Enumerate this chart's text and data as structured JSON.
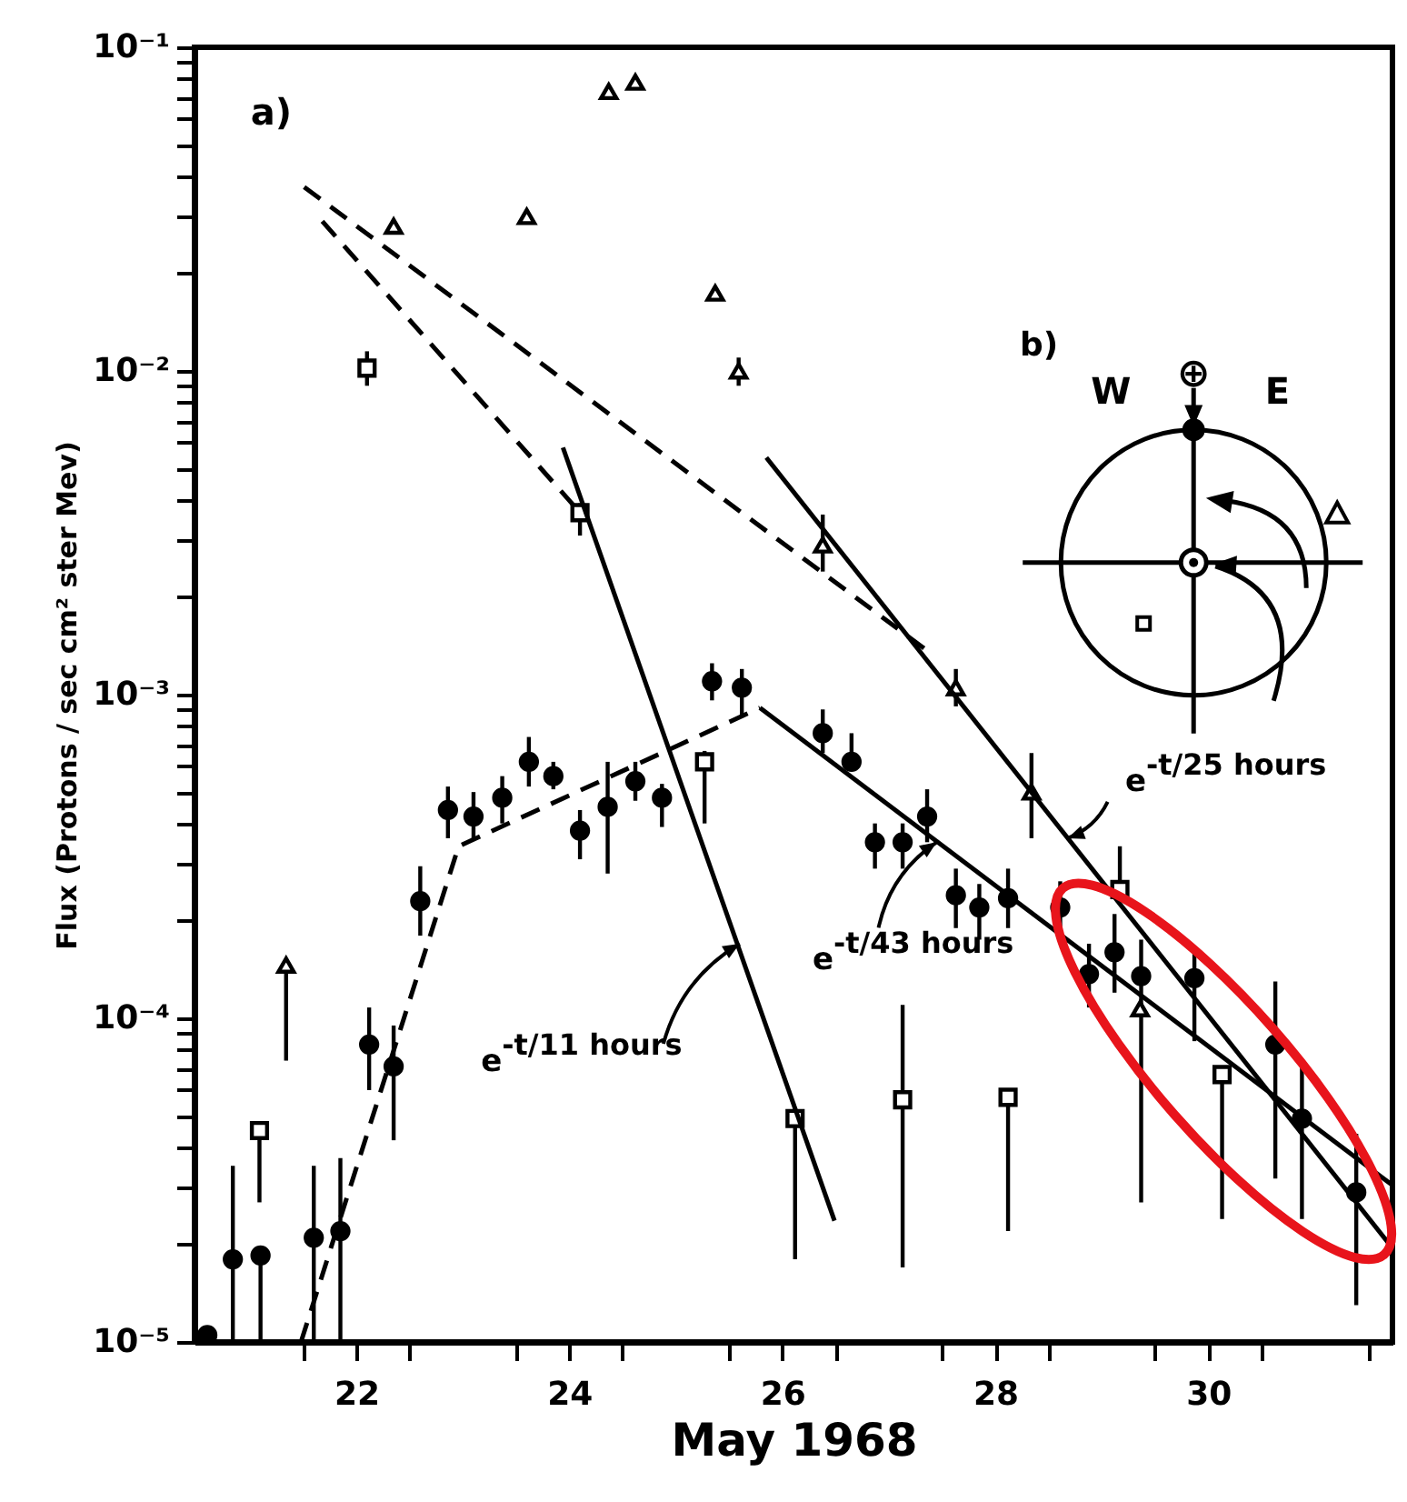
{
  "chart_data": {
    "type": "scatter",
    "xlabel": "May 1968",
    "ylabel": "Flux (Protons / sec cm² ster Mev)",
    "log": "y",
    "xlim": [
      20.48,
      31.73
    ],
    "ylim": [
      1e-05,
      0.1
    ],
    "xticks": [
      {
        "value": 21.5,
        "label": null
      },
      22,
      {
        "value": 22.5,
        "label": null
      },
      {
        "value": 23.5,
        "label": null
      },
      24,
      {
        "value": 24.5,
        "label": null
      },
      {
        "value": 25.5,
        "label": null
      },
      26,
      {
        "value": 26.5,
        "label": null
      },
      {
        "value": 27.5,
        "label": null
      },
      28,
      {
        "value": 28.5,
        "label": null
      },
      {
        "value": 29.5,
        "label": null
      },
      30,
      {
        "value": 30.5,
        "label": null
      },
      {
        "value": 31.5,
        "label": null
      }
    ],
    "yticks": [
      {
        "value": 1e-05,
        "label": "10⁻⁵"
      },
      {
        "value": 2e-05,
        "label": null
      },
      {
        "value": 3e-05,
        "label": null
      },
      {
        "value": 4e-05,
        "label": null
      },
      {
        "value": 5e-05,
        "label": null
      },
      {
        "value": 6e-05,
        "label": null
      },
      {
        "value": 7e-05,
        "label": null
      },
      {
        "value": 8e-05,
        "label": null
      },
      {
        "value": 9e-05,
        "label": null
      },
      {
        "value": 0.0001,
        "label": "10⁻⁴"
      },
      {
        "value": 0.0002,
        "label": null
      },
      {
        "value": 0.0003,
        "label": null
      },
      {
        "value": 0.0004,
        "label": null
      },
      {
        "value": 0.0005,
        "label": null
      },
      {
        "value": 0.0006,
        "label": null
      },
      {
        "value": 0.0007,
        "label": null
      },
      {
        "value": 0.0008,
        "label": null
      },
      {
        "value": 0.0009,
        "label": null
      },
      {
        "value": 0.001,
        "label": "10⁻³"
      },
      {
        "value": 0.002,
        "label": null
      },
      {
        "value": 0.003,
        "label": null
      },
      {
        "value": 0.004,
        "label": null
      },
      {
        "value": 0.005,
        "label": null
      },
      {
        "value": 0.006,
        "label": null
      },
      {
        "value": 0.007,
        "label": null
      },
      {
        "value": 0.008,
        "label": null
      },
      {
        "value": 0.009,
        "label": null
      },
      {
        "value": 0.01,
        "label": "10⁻²"
      },
      {
        "value": 0.02,
        "label": null
      },
      {
        "value": 0.03,
        "label": null
      },
      {
        "value": 0.04,
        "label": null
      },
      {
        "value": 0.05,
        "label": null
      },
      {
        "value": 0.06,
        "label": null
      },
      {
        "value": 0.07,
        "label": null
      },
      {
        "value": 0.08,
        "label": null
      },
      {
        "value": 0.09,
        "label": null
      },
      {
        "value": 0.1,
        "label": "10⁻¹"
      }
    ],
    "annotations": [
      "a)",
      "b)",
      "W",
      "E",
      "⊕",
      {
        "text": "e$^{-t/11 hours}$",
        "x": 25.6,
        "y": 0.00017
      },
      {
        "text": "e$^{-t/43 hours}$",
        "x": 27.45,
        "y": 0.00035
      },
      {
        "text": "e$^{-t/25 hours}$",
        "x": 28.68,
        "y": 0.00036
      }
    ],
    "series": [
      {
        "marker": "circle",
        "color": "#000000",
        "x": [
          20.6,
          20.84,
          21.1,
          21.6,
          21.85,
          22.12,
          22.35,
          22.6,
          22.86,
          23.1,
          23.37,
          23.62,
          23.85,
          24.1,
          24.36,
          24.62,
          24.87,
          25.34,
          25.62,
          26.38,
          26.65,
          26.87,
          27.13,
          27.36,
          27.63,
          27.85,
          28.12,
          28.61,
          28.88,
          29.12,
          29.37,
          29.87,
          30.63,
          30.88,
          31.39
        ],
        "values": [
          1.05e-05,
          1.8e-05,
          1.85e-05,
          2.1e-05,
          2.2e-05,
          8.3e-05,
          7.1e-05,
          0.00023,
          0.00044,
          0.00042,
          0.00048,
          0.00062,
          0.00056,
          0.00038,
          0.00045,
          0.00054,
          0.00048,
          0.0011,
          0.00105,
          0.00076,
          0.00062,
          0.00035,
          0.00035,
          0.00042,
          0.00024,
          0.00022,
          0.000235,
          0.00022,
          0.000137,
          0.00016,
          0.000135,
          0.000133,
          8.3e-05,
          4.9e-05,
          2.9e-05
        ],
        "errors": [
          null,
          [
            1e-05,
            3.5e-05
          ],
          [
            1e-05,
            1.85e-05
          ],
          [
            1e-05,
            3.5e-05
          ],
          [
            1e-05,
            3.7e-05
          ],
          [
            6e-05,
            0.000108
          ],
          [
            4.2e-05,
            9.5e-05
          ],
          [
            0.00018,
            0.000295
          ],
          [
            0.00036,
            0.00052
          ],
          [
            0.00036,
            0.0005
          ],
          [
            0.0004,
            0.00056
          ],
          [
            0.00052,
            0.00074
          ],
          [
            0.00051,
            0.00062
          ],
          [
            0.00031,
            0.00044
          ],
          [
            0.00028,
            0.00062
          ],
          [
            0.00047,
            0.00062
          ],
          [
            0.00039,
            0.00053
          ],
          [
            0.00096,
            0.00125
          ],
          [
            0.00085,
            0.0012
          ],
          [
            0.00066,
            0.0009
          ],
          [
            0.00058,
            0.00076
          ],
          [
            0.00029,
            0.0004
          ],
          [
            0.00029,
            0.0004
          ],
          [
            0.00035,
            0.00051
          ],
          [
            0.00019,
            0.00029
          ],
          [
            0.000175,
            0.00026
          ],
          [
            0.00019,
            0.00029
          ],
          [
            0.00018,
            0.000265
          ],
          [
            0.000108,
            0.00017
          ],
          [
            0.00012,
            0.00021
          ],
          [
            2.7e-05,
            0.000175
          ],
          [
            8.5e-05,
            0.00016
          ],
          [
            3.2e-05,
            0.00013
          ],
          [
            2.4e-05,
            7.2e-05
          ],
          [
            1.3e-05,
            4.4e-05
          ]
        ]
      },
      {
        "marker": "square",
        "color": "#000000",
        "x": [
          21.09,
          22.1,
          24.1,
          25.27,
          26.12,
          27.13,
          28.12,
          29.17,
          30.13
        ],
        "values": [
          4.5e-05,
          0.0102,
          0.00365,
          0.00062,
          4.9e-05,
          5.6e-05,
          5.7e-05,
          0.00025,
          6.7e-05
        ],
        "errors": [
          [
            2.7e-05,
            4.5e-05
          ],
          [
            0.009,
            0.0115
          ],
          [
            0.0031,
            0.0039
          ],
          [
            0.0004,
            0.00067
          ],
          [
            1.8e-05,
            4.9e-05
          ],
          [
            1.7e-05,
            0.00011
          ],
          [
            2.2e-05,
            5.7e-05
          ],
          [
            0.00025,
            0.00034
          ],
          [
            2.4e-05,
            6.7e-05
          ]
        ]
      },
      {
        "marker": "triangle",
        "color": "#000000",
        "x": [
          21.34,
          22.35,
          23.6,
          24.37,
          24.62,
          25.37,
          25.59,
          26.38,
          27.63,
          28.34,
          29.36
        ],
        "values": [
          0.000146,
          0.028,
          0.03,
          0.073,
          0.078,
          0.0174,
          0.01,
          0.0029,
          0.00105,
          0.0005,
          0.000107
        ],
        "errors": [
          [
            7.4e-05,
            0.000146
          ],
          null,
          null,
          null,
          null,
          null,
          [
            0.009,
            0.011
          ],
          [
            0.0024,
            0.0036
          ],
          [
            0.00092,
            0.0012
          ],
          [
            0.00036,
            0.00066
          ],
          null
        ]
      },
      {
        "type": "line",
        "line_style": "dashed",
        "color": "#000000",
        "x": [
          21.48,
          22.96,
          25.79
        ],
        "values": [
          1e-05,
          0.00034,
          0.00091
        ]
      },
      {
        "type": "line",
        "line_style": "solid",
        "color": "#000000",
        "x": [
          25.79,
          31.73
        ],
        "values": [
          0.00091,
          3.05e-05
        ]
      },
      {
        "type": "line",
        "line_style": "solid",
        "color": "#000000",
        "x": [
          25.85,
          31.73
        ],
        "values": [
          0.0054,
          1.95e-05
        ]
      },
      {
        "type": "line",
        "line_style": "solid",
        "color": "#000000",
        "x": [
          23.94,
          26.49
        ],
        "values": [
          0.0058,
          2.37e-05
        ]
      },
      {
        "type": "line",
        "line_style": "dashed",
        "color": "#000000",
        "x": [
          21.51,
          27.41
        ],
        "values": [
          0.037,
          0.00133
        ]
      },
      {
        "type": "line",
        "line_style": "dashed",
        "color": "#000000",
        "x": [
          21.68,
          24.1
        ],
        "values": [
          0.029,
          0.00365
        ]
      }
    ]
  }
}
